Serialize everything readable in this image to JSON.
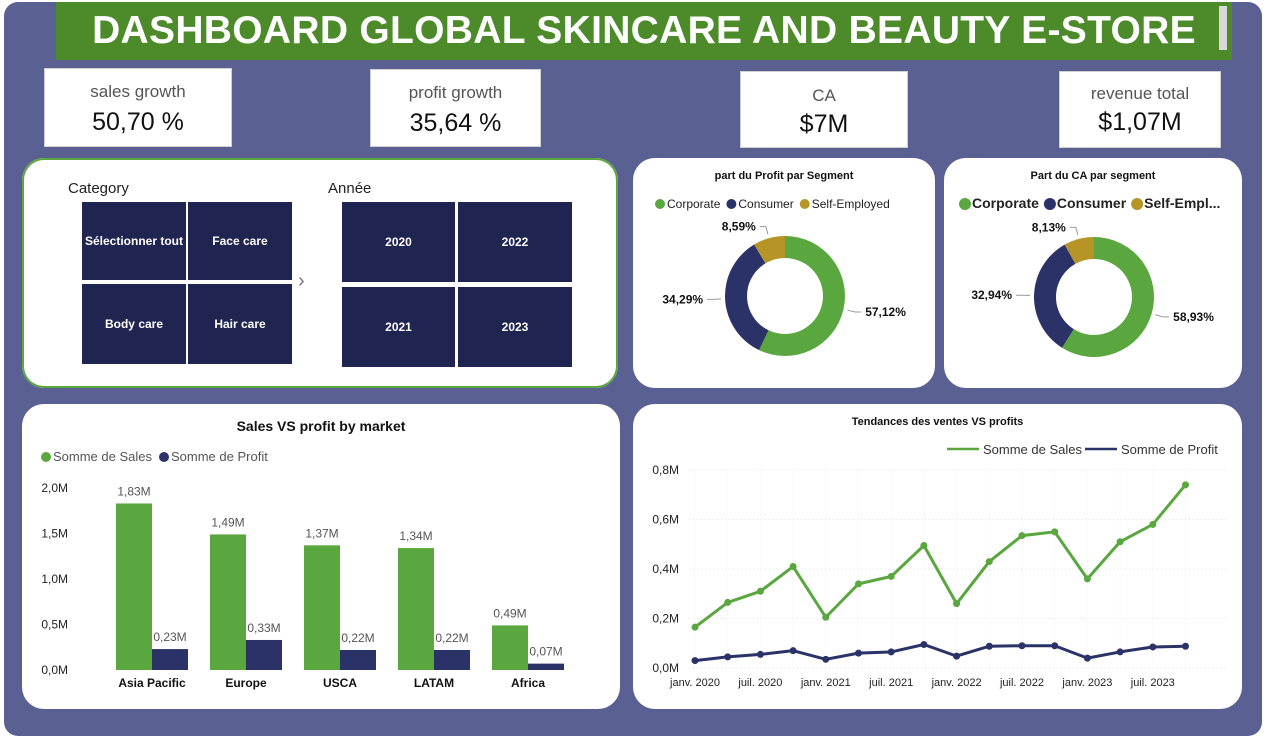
{
  "title": "DASHBOARD GLOBAL SKINCARE AND BEAUTY E-STORE",
  "kpis": {
    "sales_growth": {
      "label": "sales growth",
      "value": "50,70 %"
    },
    "profit_growth": {
      "label": "profit growth",
      "value": "35,64 %"
    },
    "ca": {
      "label": "CA",
      "value": "$7M"
    },
    "revenue_total": {
      "label": "revenue total",
      "value": "$1,07M"
    }
  },
  "slicers": {
    "category": {
      "title": "Category",
      "items": [
        "Sélectionner tout",
        "Face care",
        "Body care",
        "Hair care"
      ]
    },
    "annee": {
      "title": "Année",
      "items": [
        "2020",
        "2022",
        "2021",
        "2023"
      ]
    },
    "chevron": "›"
  },
  "colors": {
    "corporate": "#5aa63f",
    "consumer": "#2b3268",
    "self_employed": "#b69526",
    "background": "#5b6093",
    "tile": "#1f2550"
  },
  "chart_data": [
    {
      "type": "pie",
      "variant": "donut",
      "title": "part du Profit par Segment",
      "legend": [
        "Corporate",
        "Consumer",
        "Self-Employed"
      ],
      "values": [
        57.12,
        34.29,
        8.59
      ],
      "labels": [
        "57,12%",
        "34,29%",
        "8,59%"
      ]
    },
    {
      "type": "pie",
      "variant": "donut",
      "title": "Part du CA par segment",
      "legend": [
        "Corporate",
        "Consumer",
        "Self-Empl..."
      ],
      "values": [
        58.93,
        32.94,
        8.13
      ],
      "labels": [
        "58,93%",
        "32,94%",
        "8,13%"
      ]
    },
    {
      "type": "bar",
      "title": "Sales VS profit by market",
      "categories": [
        "Asia Pacific",
        "Europe",
        "USCA",
        "LATAM",
        "Africa"
      ],
      "series": [
        {
          "name": "Somme de Sales",
          "values": [
            1.83,
            1.49,
            1.37,
            1.34,
            0.49
          ],
          "labels": [
            "1,83M",
            "1,49M",
            "1,37M",
            "1,34M",
            "0,49M"
          ]
        },
        {
          "name": "Somme de Profit",
          "values": [
            0.23,
            0.33,
            0.22,
            0.22,
            0.07
          ],
          "labels": [
            "0,23M",
            "0,33M",
            "0,22M",
            "0,22M",
            "0,07M"
          ]
        }
      ],
      "ylim": [
        0,
        2.0
      ],
      "yticks": [
        0,
        0.5,
        1.0,
        1.5,
        2.0
      ],
      "ytick_labels": [
        "0,0M",
        "0,5M",
        "1,0M",
        "1,5M",
        "2,0M"
      ],
      "legend_position": "top-left"
    },
    {
      "type": "line",
      "title": "Tendances des ventes VS profits",
      "x": [
        "2020-01",
        "2020-04",
        "2020-07",
        "2020-10",
        "2021-01",
        "2021-04",
        "2021-07",
        "2021-10",
        "2022-01",
        "2022-04",
        "2022-07",
        "2022-10",
        "2023-01",
        "2023-04",
        "2023-07",
        "2023-10"
      ],
      "series": [
        {
          "name": "Somme de Sales",
          "values": [
            0.165,
            0.265,
            0.31,
            0.41,
            0.205,
            0.34,
            0.37,
            0.495,
            0.26,
            0.43,
            0.535,
            0.55,
            0.36,
            0.51,
            0.58,
            0.74
          ]
        },
        {
          "name": "Somme de Profit",
          "values": [
            0.03,
            0.045,
            0.055,
            0.07,
            0.035,
            0.06,
            0.065,
            0.095,
            0.048,
            0.088,
            0.09,
            0.09,
            0.04,
            0.065,
            0.085,
            0.088
          ]
        }
      ],
      "ylim": [
        0,
        0.8
      ],
      "yticks": [
        0,
        0.2,
        0.4,
        0.6,
        0.8
      ],
      "ytick_labels": [
        "0,0M",
        "0,2M",
        "0,4M",
        "0,6M",
        "0,8M"
      ],
      "xtick_labels": [
        "janv. 2020",
        "juil. 2020",
        "janv. 2021",
        "juil. 2021",
        "janv. 2022",
        "juil. 2022",
        "janv. 2023",
        "juil. 2023"
      ],
      "legend_position": "top-right"
    }
  ]
}
